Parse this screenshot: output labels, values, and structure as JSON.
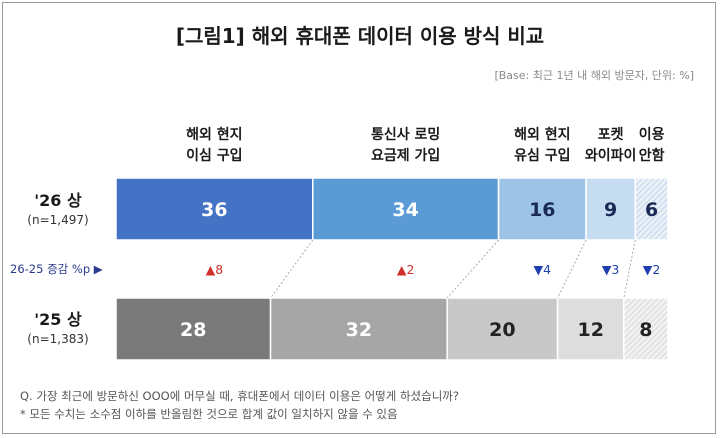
{
  "title": "[그림1] 해외 휴대폰 데이터 이용 방식 비교",
  "base": "[Base: 최근 1년 내 해외 방문자, 단위: %]",
  "change_label": "26-25 증감 %p ▶",
  "notes": [
    "Q. 가장 최근에 방문하신 OOO에 머무실 때, 휴대폰에서 데이터 이용은 어떻게 하셨습니까?",
    "* 모든 수치는 소수점 이하를 반올림한 것으로 합계 값이 일치하지 않을 수 있음"
  ],
  "chart_data": {
    "type": "bar",
    "orientation": "horizontal",
    "stacked": true,
    "categories": [
      [
        "해외 현지",
        "이심 구입"
      ],
      [
        "통신사 로밍",
        "요금제 가입"
      ],
      [
        "해외 현지",
        "유심 구입"
      ],
      [
        "포켓",
        "와이파이"
      ],
      [
        "이용",
        "안함"
      ]
    ],
    "series": [
      {
        "year": "'26 상",
        "n": "(n=1,497)",
        "values": [
          36,
          34,
          16,
          9,
          6
        ],
        "colors": [
          "#4472c4",
          "#5b9bd5",
          "#9dc3e6",
          "#c5dcf1",
          "#e6eef7"
        ]
      },
      {
        "year": "'25 상",
        "n": "(n=1,383)",
        "values": [
          28,
          32,
          20,
          12,
          8
        ],
        "colors": [
          "#7a7a7a",
          "#a6a6a6",
          "#c8c8c8",
          "#dddddd",
          "#eeeeee"
        ]
      }
    ],
    "changes": [
      {
        "dir": "up",
        "value": "8",
        "text": "▲8"
      },
      {
        "dir": "up",
        "value": "2",
        "text": "▲2"
      },
      {
        "dir": "down",
        "value": "4",
        "text": "▼4"
      },
      {
        "dir": "down",
        "value": "3",
        "text": "▼3"
      },
      {
        "dir": "down",
        "value": "2",
        "text": "▼2"
      }
    ],
    "up_color": "#d0312d",
    "down_color": "#1f3fb0"
  }
}
